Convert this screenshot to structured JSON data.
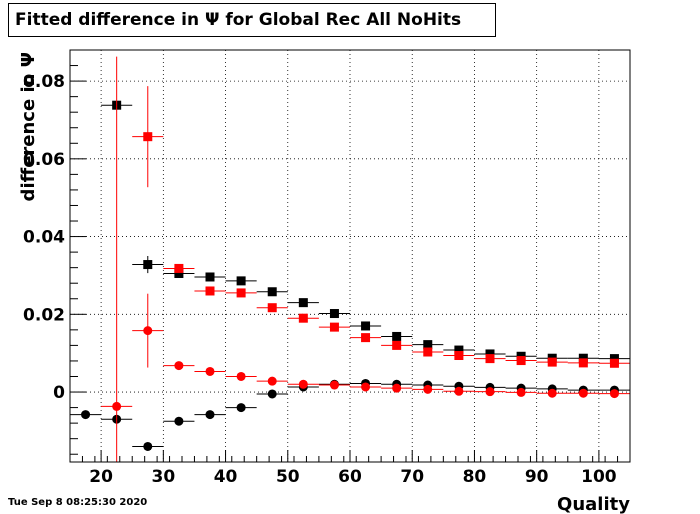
{
  "title": "Fitted difference in  Ψ  for Global Rec All NoHits",
  "timestamp": "Tue Sep  8 08:25:30 2020",
  "chart_data": {
    "type": "scatter",
    "title": "Fitted difference in  Ψ  for Global Rec All NoHits",
    "xlabel": "Quality",
    "ylabel": "difference in Ψ",
    "xlim": [
      15,
      105
    ],
    "ylim": [
      -0.018,
      0.088
    ],
    "xticks": [
      20,
      30,
      40,
      50,
      60,
      70,
      80,
      90,
      100
    ],
    "yticks": [
      0,
      0.02,
      0.04,
      0.06,
      0.08
    ],
    "ytick_labels": [
      "0",
      "0.02",
      "0.04",
      "0.06",
      "0.08"
    ],
    "grid": true,
    "legend": "none",
    "series": [
      {
        "marker": "square",
        "color": "#000000",
        "x": [
          22.5,
          27.5,
          32.5,
          37.5,
          42.5,
          47.5,
          52.5,
          57.5,
          62.5,
          67.5,
          72.5,
          77.5,
          82.5,
          87.5,
          92.5,
          97.5,
          102.5
        ],
        "y": [
          0.0738,
          0.0328,
          0.0305,
          0.0296,
          0.0286,
          0.0258,
          0.023,
          0.0202,
          0.017,
          0.0143,
          0.0122,
          0.0108,
          0.0098,
          0.0092,
          0.0087,
          0.0087,
          0.0086
        ],
        "yerr": [
          0,
          0.0022,
          0.001,
          0.0008,
          0.0007,
          0.0006,
          0.0005,
          0.0004,
          0.0004,
          0.0003,
          0.0003,
          0.0003,
          0.0003,
          0.0003,
          0.0003,
          0.0003,
          0.0003
        ]
      },
      {
        "marker": "square",
        "color": "#ff0000",
        "x": [
          27.5,
          32.5,
          37.5,
          42.5,
          47.5,
          52.5,
          57.5,
          62.5,
          67.5,
          72.5,
          77.5,
          82.5,
          87.5,
          92.5,
          97.5,
          102.5
        ],
        "y": [
          0.0657,
          0.0318,
          0.026,
          0.0255,
          0.0217,
          0.019,
          0.0167,
          0.014,
          0.012,
          0.0103,
          0.0094,
          0.0086,
          0.0081,
          0.0077,
          0.0075,
          0.0074
        ],
        "yerr": [
          0.013,
          0.001,
          0.0008,
          0.0007,
          0.0006,
          0.0005,
          0.0004,
          0.0004,
          0.0003,
          0.0003,
          0.0003,
          0.0003,
          0.0003,
          0.0003,
          0.0003,
          0.0003
        ]
      },
      {
        "marker": "circle",
        "color": "#000000",
        "x": [
          17.5,
          22.5,
          27.5,
          32.5,
          37.5,
          42.5,
          47.5,
          52.5,
          57.5,
          62.5,
          67.5,
          72.5,
          77.5,
          82.5,
          87.5,
          92.5,
          97.5,
          102.5
        ],
        "y": [
          -0.0058,
          -0.007,
          -0.014,
          -0.0075,
          -0.0058,
          -0.004,
          -0.0005,
          0.0013,
          0.002,
          0.0022,
          0.002,
          0.0018,
          0.0015,
          0.0012,
          0.001,
          0.0008,
          0.0005,
          0.0005
        ],
        "yerr": [
          0,
          0,
          0.001,
          0.0005,
          0.0004,
          0.0004,
          0.0003,
          0.0003,
          0.0003,
          0.0003,
          0.0003,
          0.0003,
          0.0003,
          0.0003,
          0.0003,
          0.0003,
          0.0003,
          0.0003
        ]
      },
      {
        "marker": "circle",
        "color": "#ff0000",
        "x": [
          22.5,
          27.5,
          32.5,
          37.5,
          42.5,
          47.5,
          52.5,
          57.5,
          62.5,
          67.5,
          72.5,
          77.5,
          82.5,
          87.5,
          92.5,
          97.5,
          102.5
        ],
        "y": [
          -0.0037,
          0.0158,
          0.0068,
          0.0053,
          0.004,
          0.0028,
          0.002,
          0.0018,
          0.0013,
          0.001,
          0.0007,
          0.0002,
          0.0001,
          -0.0001,
          -0.0003,
          -0.0003,
          -0.0004
        ],
        "yerr": [
          0.09,
          0.0095,
          0.0008,
          0.0006,
          0.0005,
          0.0004,
          0.0004,
          0.0003,
          0.0003,
          0.0003,
          0.0003,
          0.0003,
          0.0003,
          0.0003,
          0.0003,
          0.0003,
          0.0003
        ]
      }
    ]
  }
}
